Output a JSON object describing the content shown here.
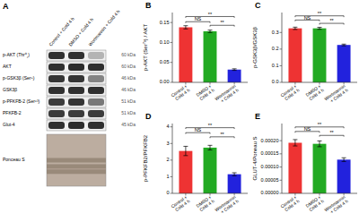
{
  "chart_data": [
    {
      "type": "blot",
      "title": "A",
      "row_labels": [
        "p-AKT (Thr⁰¸)",
        "AKT",
        "p-GSK3β (Ser⁹)",
        "GSK3β",
        "p-PFKFB-2 (Ser⁶³)",
        "PFKFB-2",
        "Glut-4"
      ],
      "kda_labels": [
        "60 kDa",
        "60 kDa",
        "46 kDa",
        "46 kDa",
        "51 kDa",
        "51 kDa",
        "45 kDa"
      ],
      "columns": [
        "Control + Cold 4 h",
        "DMSO + Cold 4 h",
        "Wortmannin + Cold 4 h"
      ],
      "cells": [
        [
          0.8,
          0.8,
          0.25
        ],
        [
          0.8,
          0.82,
          0.8
        ],
        [
          0.78,
          0.78,
          0.45
        ],
        [
          0.8,
          0.8,
          0.8
        ],
        [
          0.75,
          0.78,
          0.5
        ],
        [
          0.75,
          0.75,
          0.75
        ],
        [
          0.8,
          0.82,
          0.8
        ]
      ],
      "gel_label": "Ponceau S"
    },
    {
      "type": "bar",
      "title": "B",
      "y_label": "p-AKT (Ser⁷³) / AKT",
      "categories": [
        "Control +\nCold 4 h",
        "DMSO +\nCold 4 h",
        "Wortmannin\n+ Cold 4 h"
      ],
      "values": [
        0.138,
        0.128,
        0.032
      ],
      "errors": [
        0.004,
        0.003,
        0.002
      ],
      "colors": [
        "#EE3333",
        "#22AA22",
        "#2222DD"
      ],
      "ylim": [
        0,
        0.175
      ],
      "yticks": [
        {
          "value": 0.0,
          "label": "0.00"
        },
        {
          "value": 0.05,
          "label": "0.05"
        },
        {
          "value": 0.1,
          "label": "0.10"
        },
        {
          "value": 0.15,
          "label": "0.15"
        }
      ],
      "grid": false,
      "annotations": [
        {
          "from": 0,
          "to": 1,
          "label": "NS",
          "y": 0.152
        },
        {
          "from": 0,
          "to": 2,
          "label": "**",
          "y": 0.165
        },
        {
          "from": 1,
          "to": 2,
          "label": "**",
          "y": 0.143
        }
      ]
    },
    {
      "type": "bar",
      "title": "C",
      "y_label": "p-GSK3β/GSK3β",
      "categories": [
        "Control +\nCold 4 h",
        "DMSO +\nCold 4 h",
        "Wortmannin\n+ Cold 4 h"
      ],
      "values": [
        0.325,
        0.325,
        0.225
      ],
      "errors": [
        0.007,
        0.006,
        0.005
      ],
      "colors": [
        "#EE3333",
        "#22AA22",
        "#2222DD"
      ],
      "ylim": [
        0,
        0.42
      ],
      "yticks": [
        {
          "value": 0.0,
          "label": "0.0"
        },
        {
          "value": 0.1,
          "label": "0.1"
        },
        {
          "value": 0.2,
          "label": "0.2"
        },
        {
          "value": 0.3,
          "label": "0.3"
        }
      ],
      "grid": false,
      "annotations": [
        {
          "from": 0,
          "to": 1,
          "label": "NS",
          "y": 0.375
        },
        {
          "from": 0,
          "to": 2,
          "label": "**",
          "y": 0.4
        },
        {
          "from": 1,
          "to": 2,
          "label": "**",
          "y": 0.355
        }
      ]
    },
    {
      "type": "bar",
      "title": "D",
      "y_label": "p-PFKFB2/PFKFB2",
      "categories": [
        "Control +\nCold 4 h",
        "DMSO +\nCold 4 h",
        "Wortmannin\n+ Cold 4 h"
      ],
      "values": [
        2.55,
        2.75,
        1.15
      ],
      "errors": [
        0.28,
        0.14,
        0.09
      ],
      "colors": [
        "#EE3333",
        "#22AA22",
        "#2222DD"
      ],
      "ylim": [
        0,
        4.2
      ],
      "yticks": [
        0,
        1,
        2,
        3,
        4
      ],
      "grid": false,
      "annotations": [
        {
          "from": 0,
          "to": 1,
          "label": "NS",
          "y": 3.65
        },
        {
          "from": 0,
          "to": 2,
          "label": "**",
          "y": 3.95
        },
        {
          "from": 1,
          "to": 2,
          "label": "**",
          "y": 3.4
        }
      ]
    },
    {
      "type": "bar",
      "title": "E",
      "y_label": "GLUT-4/Poneau S",
      "categories": [
        "Control +\nCold 4 h",
        "DMSO +\nCold 4 h",
        "Wortmannin\n+ Cold 4 h"
      ],
      "values": [
        0.000192,
        0.000188,
        0.000128
      ],
      "errors": [
        1.2e-05,
        1.1e-05,
        7e-06
      ],
      "colors": [
        "#EE3333",
        "#22AA22",
        "#2222DD"
      ],
      "ylim": [
        0,
        0.000265
      ],
      "yticks": [
        {
          "value": 0.0,
          "label": "0.00000"
        },
        {
          "value": 5e-05,
          "label": "0.00005"
        },
        {
          "value": 0.0001,
          "label": "0.00010"
        },
        {
          "value": 0.00015,
          "label": "0.00015"
        },
        {
          "value": 0.0002,
          "label": "0.00020"
        }
      ],
      "grid": false,
      "annotations": [
        {
          "from": 0,
          "to": 1,
          "label": "NS",
          "y": 0.000235
        },
        {
          "from": 0,
          "to": 2,
          "label": "**",
          "y": 0.000252
        },
        {
          "from": 1,
          "to": 2,
          "label": "**",
          "y": 0.00022
        }
      ]
    }
  ]
}
